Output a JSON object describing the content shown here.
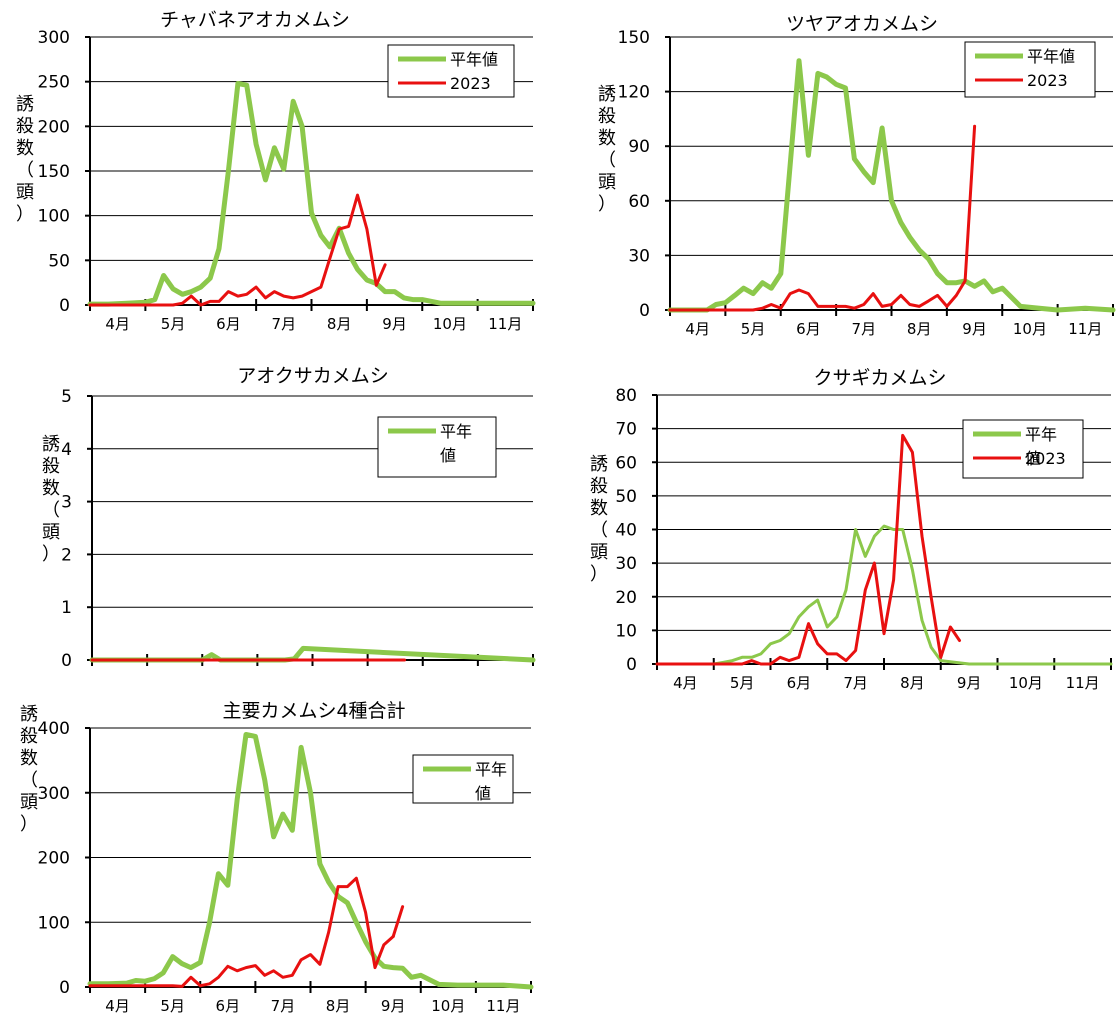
{
  "chart_data": [
    {
      "type": "line",
      "title": "チャバネアオカメムシ",
      "ylabel": "誘殺数（頭）",
      "ylim": [
        0,
        300
      ],
      "yticks": [
        0,
        50,
        100,
        150,
        200,
        250,
        300
      ],
      "months": [
        "4月",
        "5月",
        "6月",
        "7月",
        "8月",
        "9月",
        "10月",
        "11月"
      ],
      "xlim": [
        0,
        8
      ],
      "legend": [
        "平年値",
        "2023"
      ],
      "series": [
        {
          "name": "平年値",
          "color": "#8cc84b",
          "x": [
            0,
            0.33,
            0.67,
            1,
            1.17,
            1.33,
            1.5,
            1.67,
            1.83,
            2,
            2.17,
            2.33,
            2.5,
            2.67,
            2.83,
            3,
            3.17,
            3.33,
            3.5,
            3.67,
            3.83,
            4,
            4.17,
            4.33,
            4.5,
            4.67,
            4.83,
            5,
            5.17,
            5.33,
            5.5,
            5.67,
            5.83,
            6,
            6.33,
            6.67,
            7,
            7.33,
            7.67,
            8
          ],
          "y": [
            1,
            1,
            2,
            3,
            6,
            33,
            18,
            12,
            15,
            20,
            30,
            63,
            150,
            248,
            246,
            180,
            140,
            176,
            152,
            228,
            200,
            103,
            78,
            65,
            86,
            58,
            40,
            28,
            24,
            15,
            15,
            8,
            6,
            6,
            2,
            2,
            2,
            2,
            2,
            2
          ]
        },
        {
          "name": "2023",
          "color": "#e81010",
          "x": [
            0,
            0.5,
            1,
            1.5,
            1.67,
            1.83,
            2,
            2.17,
            2.33,
            2.5,
            2.67,
            2.83,
            3,
            3.17,
            3.33,
            3.5,
            3.67,
            3.83,
            4,
            4.17,
            4.33,
            4.5,
            4.67,
            4.83,
            5,
            5.17,
            5.33
          ],
          "y": [
            0,
            0,
            0,
            0,
            2,
            10,
            0,
            4,
            4,
            15,
            10,
            12,
            20,
            8,
            15,
            10,
            8,
            10,
            15,
            20,
            52,
            85,
            88,
            123,
            85,
            22,
            45
          ]
        }
      ]
    },
    {
      "type": "line",
      "title": "ツヤアオカメムシ",
      "ylabel": "誘殺数（頭）",
      "ylim": [
        0,
        150
      ],
      "yticks": [
        0,
        30,
        60,
        90,
        120,
        150
      ],
      "months": [
        "4月",
        "5月",
        "6月",
        "7月",
        "8月",
        "9月",
        "10月",
        "11月"
      ],
      "xlim": [
        0,
        8
      ],
      "legend": [
        "平年値",
        "2023"
      ],
      "series": [
        {
          "name": "平年値",
          "color": "#8cc84b",
          "x": [
            0,
            0.33,
            0.67,
            0.83,
            1,
            1.17,
            1.33,
            1.5,
            1.67,
            1.83,
            2,
            2.17,
            2.33,
            2.5,
            2.67,
            2.83,
            3,
            3.17,
            3.33,
            3.5,
            3.67,
            3.83,
            4,
            4.17,
            4.33,
            4.5,
            4.67,
            4.83,
            5,
            5.17,
            5.33,
            5.5,
            5.67,
            5.83,
            6,
            6.33,
            6.67,
            7,
            7.5,
            8
          ],
          "y": [
            0,
            0,
            0,
            3,
            4,
            8,
            12,
            9,
            15,
            12,
            20,
            80,
            137,
            85,
            130,
            128,
            124,
            122,
            83,
            76,
            70,
            100,
            60,
            48,
            40,
            33,
            28,
            20,
            15,
            15,
            16,
            13,
            16,
            10,
            12,
            2,
            1,
            0,
            1,
            0
          ]
        },
        {
          "name": "2023",
          "color": "#e81010",
          "x": [
            0,
            0.5,
            1,
            1.5,
            1.67,
            1.83,
            2,
            2.17,
            2.33,
            2.5,
            2.67,
            2.83,
            3,
            3.17,
            3.33,
            3.5,
            3.67,
            3.83,
            4,
            4.17,
            4.33,
            4.5,
            4.67,
            4.83,
            5,
            5.17,
            5.33,
            5.5
          ],
          "y": [
            0,
            0,
            0,
            0,
            1,
            3,
            1,
            9,
            11,
            9,
            2,
            2,
            2,
            2,
            1,
            3,
            9,
            2,
            3,
            8,
            3,
            2,
            5,
            8,
            2,
            8,
            16,
            101
          ]
        }
      ]
    },
    {
      "type": "line",
      "title": "アオクサカメムシ",
      "ylabel": "誘殺数（頭）",
      "ylim": [
        0,
        5
      ],
      "yticks": [
        0,
        1,
        2,
        3,
        4,
        5
      ],
      "months": [],
      "xlim": [
        0,
        8
      ],
      "legend": [
        "平年値"
      ],
      "series": [
        {
          "name": "平年値",
          "color": "#8cc84b",
          "x": [
            0,
            1.83,
            2,
            2.17,
            2.33,
            3.5,
            3.67,
            3.83,
            8
          ],
          "y": [
            0,
            0,
            0,
            0.1,
            0,
            0,
            0.02,
            0.22,
            0
          ]
        },
        {
          "name": "",
          "color": "#e81010",
          "x": [
            0,
            5.67
          ],
          "y": [
            0,
            0
          ]
        }
      ]
    },
    {
      "type": "line",
      "title": "クサギカメムシ",
      "ylabel": "誘殺数（頭）",
      "ylim": [
        0,
        80
      ],
      "yticks": [
        0,
        10,
        20,
        30,
        40,
        50,
        60,
        70,
        80
      ],
      "months": [
        "4月",
        "5月",
        "6月",
        "7月",
        "8月",
        "9月",
        "10月",
        "11月"
      ],
      "xlim": [
        0,
        8
      ],
      "legend": [
        "平年値",
        "2023"
      ],
      "series": [
        {
          "name": "平年値",
          "color": "#8cc84b",
          "thin": true,
          "x": [
            0,
            0.5,
            1,
            1.17,
            1.33,
            1.5,
            1.67,
            1.83,
            2,
            2.17,
            2.33,
            2.5,
            2.67,
            2.83,
            3,
            3.17,
            3.33,
            3.5,
            3.67,
            3.83,
            4,
            4.17,
            4.33,
            4.5,
            4.67,
            4.83,
            5,
            5.5,
            6,
            6.5,
            7,
            8
          ],
          "y": [
            0,
            0,
            0,
            0.5,
            1,
            2,
            2,
            3,
            6,
            7,
            9,
            14,
            17,
            19,
            11,
            14,
            22,
            40,
            32,
            38,
            41,
            40,
            40,
            28,
            13,
            5,
            1,
            0,
            0,
            0,
            0,
            0
          ]
        },
        {
          "name": "2023",
          "color": "#e81010",
          "x": [
            0,
            1,
            1.5,
            1.67,
            1.83,
            2,
            2.17,
            2.33,
            2.5,
            2.67,
            2.83,
            3,
            3.17,
            3.33,
            3.5,
            3.67,
            3.83,
            4,
            4.17,
            4.33,
            4.5,
            4.67,
            4.83,
            5,
            5.17,
            5.33
          ],
          "y": [
            0,
            0,
            0,
            1,
            0,
            0,
            2,
            1,
            2,
            12,
            6,
            3,
            3,
            1,
            4,
            22,
            30,
            9,
            25,
            68,
            63,
            38,
            20,
            2,
            11,
            7
          ]
        }
      ]
    },
    {
      "type": "line",
      "title": "主要カメムシ4種合計",
      "ylabel": "誘殺数（頭）",
      "ylim": [
        0,
        400
      ],
      "yticks": [
        0,
        100,
        200,
        300,
        400
      ],
      "months": [
        "4月",
        "5月",
        "6月",
        "7月",
        "8月",
        "9月",
        "10月",
        "11月"
      ],
      "xlim": [
        0,
        8
      ],
      "legend": [
        "平年値"
      ],
      "series": [
        {
          "name": "平年値",
          "color": "#8cc84b",
          "x": [
            0,
            0.33,
            0.67,
            0.83,
            1,
            1.17,
            1.33,
            1.5,
            1.67,
            1.83,
            2,
            2.17,
            2.33,
            2.5,
            2.67,
            2.83,
            3,
            3.17,
            3.33,
            3.5,
            3.67,
            3.83,
            4,
            4.17,
            4.33,
            4.5,
            4.67,
            4.83,
            5,
            5.17,
            5.33,
            5.5,
            5.67,
            5.83,
            6,
            6.33,
            6.67,
            7,
            7.5,
            8
          ],
          "y": [
            5,
            5,
            6,
            10,
            9,
            13,
            22,
            47,
            36,
            30,
            38,
            100,
            175,
            157,
            290,
            390,
            387,
            320,
            232,
            267,
            242,
            370,
            300,
            190,
            162,
            140,
            130,
            100,
            70,
            45,
            32,
            30,
            29,
            15,
            18,
            4,
            3,
            3,
            3,
            0
          ]
        },
        {
          "name": "",
          "color": "#e81010",
          "x": [
            0,
            0.5,
            1,
            1.5,
            1.67,
            1.83,
            2,
            2.17,
            2.33,
            2.5,
            2.67,
            2.83,
            3,
            3.17,
            3.33,
            3.5,
            3.67,
            3.83,
            4,
            4.17,
            4.33,
            4.5,
            4.67,
            4.83,
            5,
            5.17,
            5.33,
            5.5
          ],
          "y": [
            2,
            2,
            2,
            2,
            1,
            15,
            2,
            5,
            15,
            32,
            25,
            30,
            33,
            18,
            25,
            15,
            18,
            42,
            50,
            35,
            85,
            155,
            155,
            168,
            115,
            30,
            65,
            78
          ]
        },
        {
          "name": "",
          "color": "#e81010",
          "x": [
            5.5,
            5.67
          ],
          "y": [
            78,
            124
          ]
        }
      ]
    }
  ]
}
